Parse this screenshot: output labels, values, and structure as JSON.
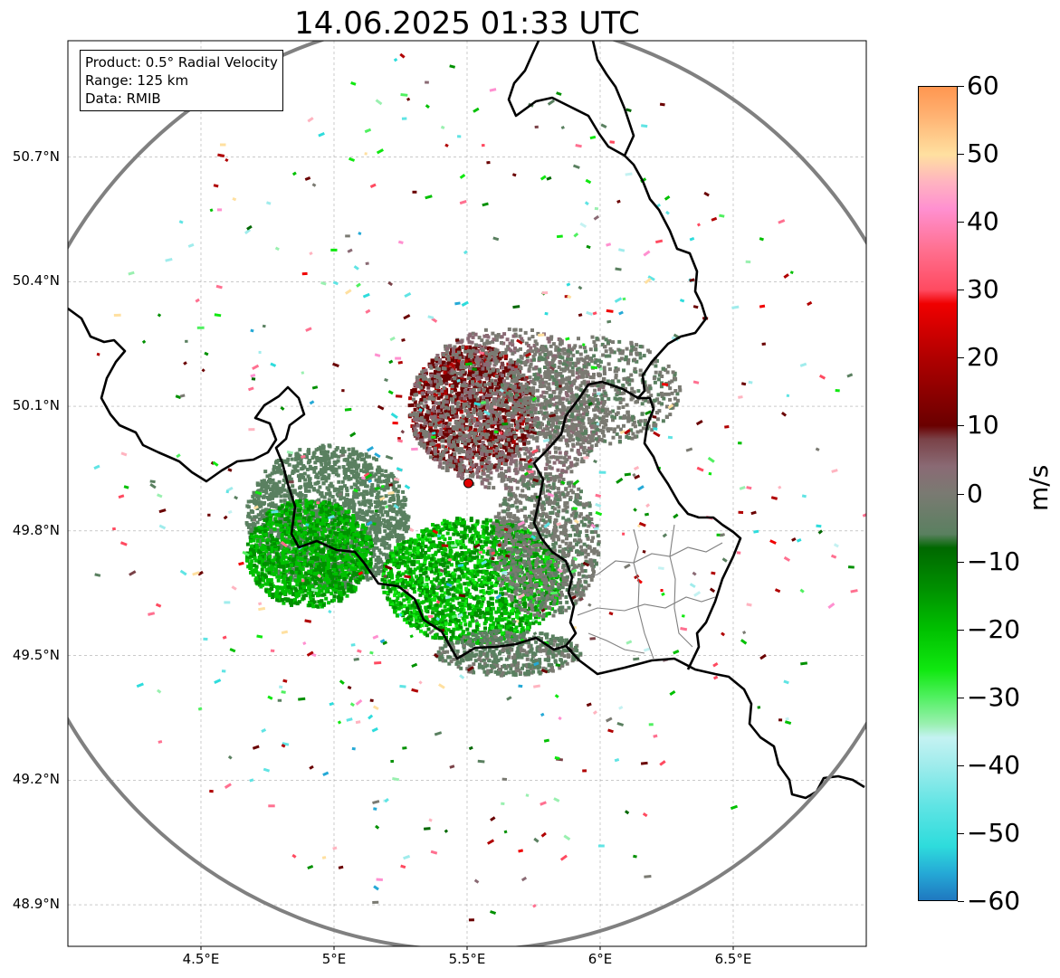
{
  "title": "14.06.2025 01:33 UTC",
  "info": {
    "product": "Product: 0.5° Radial Velocity",
    "range": "Range: 125 km",
    "source": "Data: RMIB"
  },
  "map": {
    "extent": {
      "lon_min": 4.0,
      "lon_max": 7.0,
      "lat_min": 48.8,
      "lat_max": 50.98
    },
    "radar_site": {
      "lon": 5.505,
      "lat": 49.915
    },
    "range_km": 125,
    "lat_ticks": [
      {
        "value": 50.7,
        "label": "50.7°N"
      },
      {
        "value": 50.4,
        "label": "50.4°N"
      },
      {
        "value": 50.1,
        "label": "50.1°N"
      },
      {
        "value": 49.8,
        "label": "49.8°N"
      },
      {
        "value": 49.5,
        "label": "49.5°N"
      },
      {
        "value": 49.2,
        "label": "49.2°N"
      },
      {
        "value": 48.9,
        "label": "48.9°N"
      }
    ],
    "lon_ticks": [
      {
        "value": 4.5,
        "label": "4.5°E"
      },
      {
        "value": 5.0,
        "label": "5°E"
      },
      {
        "value": 5.5,
        "label": "5.5°E"
      },
      {
        "value": 6.0,
        "label": "6°E"
      },
      {
        "value": 6.5,
        "label": "6.5°E"
      }
    ],
    "gridlines": true
  },
  "colorbar": {
    "unit": "m/s",
    "min": -60,
    "max": 60,
    "ticks": [
      {
        "value": 60,
        "label": "60"
      },
      {
        "value": 50,
        "label": "50"
      },
      {
        "value": 40,
        "label": "40"
      },
      {
        "value": 30,
        "label": "30"
      },
      {
        "value": 20,
        "label": "20"
      },
      {
        "value": 10,
        "label": "10"
      },
      {
        "value": 0,
        "label": "0"
      },
      {
        "value": -10,
        "label": "−10"
      },
      {
        "value": -20,
        "label": "−20"
      },
      {
        "value": -30,
        "label": "−30"
      },
      {
        "value": -40,
        "label": "−40"
      },
      {
        "value": -50,
        "label": "−50"
      },
      {
        "value": -60,
        "label": "−60"
      }
    ],
    "stops": [
      {
        "value": -60,
        "color": "#1f78c0"
      },
      {
        "value": -56,
        "color": "#25a9d6"
      },
      {
        "value": -52,
        "color": "#2edcdc"
      },
      {
        "value": -46,
        "color": "#60e4e4"
      },
      {
        "value": -40,
        "color": "#a0ecec"
      },
      {
        "value": -36,
        "color": "#c4f2f2"
      },
      {
        "value": -34,
        "color": "#9af0b0"
      },
      {
        "value": -30,
        "color": "#50f060"
      },
      {
        "value": -26,
        "color": "#10e810"
      },
      {
        "value": -20,
        "color": "#00c000"
      },
      {
        "value": -14,
        "color": "#009000"
      },
      {
        "value": -8,
        "color": "#006800"
      },
      {
        "value": -6,
        "color": "#5a8060"
      },
      {
        "value": 0,
        "color": "#7a7a72"
      },
      {
        "value": 4,
        "color": "#8a6a74"
      },
      {
        "value": 8,
        "color": "#7a4248"
      },
      {
        "value": 10,
        "color": "#6a0000"
      },
      {
        "value": 20,
        "color": "#b00000"
      },
      {
        "value": 28,
        "color": "#f00000"
      },
      {
        "value": 30,
        "color": "#ff4a60"
      },
      {
        "value": 36,
        "color": "#ff7090"
      },
      {
        "value": 42,
        "color": "#ff90d0"
      },
      {
        "value": 46,
        "color": "#ffb4c0"
      },
      {
        "value": 50,
        "color": "#ffe0a0"
      },
      {
        "value": 56,
        "color": "#ffb070"
      },
      {
        "value": 60,
        "color": "#ff9650"
      }
    ]
  }
}
